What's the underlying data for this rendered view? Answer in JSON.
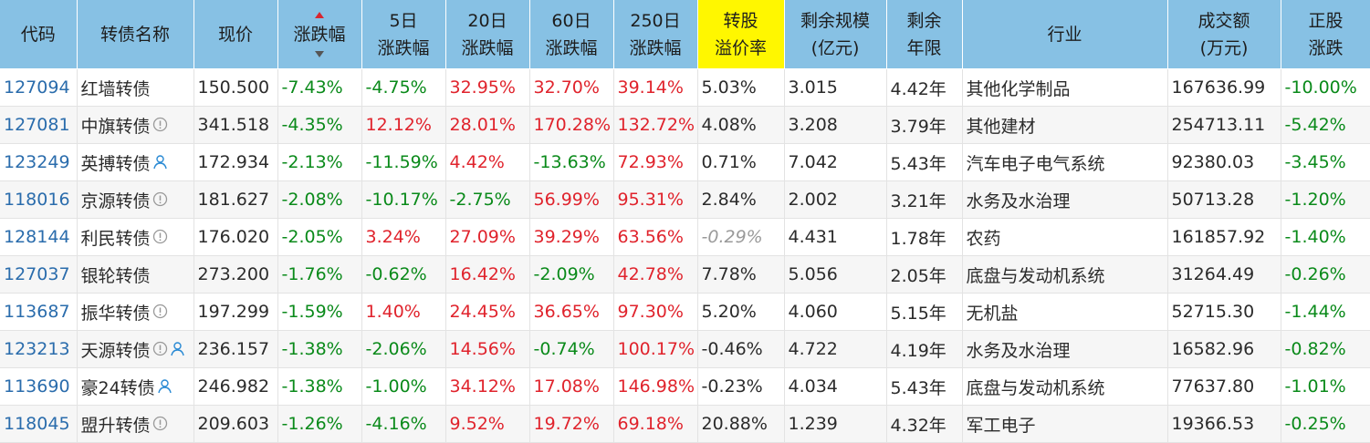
{
  "columns": {
    "code": "代码",
    "name": "转债名称",
    "price": "现价",
    "change": "涨跌幅",
    "d5_a": "5日",
    "d5_b": "涨跌幅",
    "d20_a": "20日",
    "d20_b": "涨跌幅",
    "d60_a": "60日",
    "d60_b": "涨跌幅",
    "d250_a": "250日",
    "d250_b": "涨跌幅",
    "prem_a": "转股",
    "prem_b": "溢价率",
    "scale_a": "剩余规模",
    "scale_b": "(亿元)",
    "years_a": "剩余",
    "years_b": "年限",
    "industry": "行业",
    "turnover_a": "成交额",
    "turnover_b": "(万元)",
    "stock_a": "正股",
    "stock_b": "涨跌"
  },
  "colors": {
    "header_bg": "#87c1e4",
    "highlight": "#fff700",
    "up": "#e0232c",
    "down": "#0a8a1a",
    "code": "#2a6cac"
  },
  "rows": [
    {
      "code": "127094",
      "name": "红墙转债",
      "icons": [],
      "price": "150.500",
      "change": "-7.43%",
      "d5": "-4.75%",
      "d20": "32.95%",
      "d60": "32.70%",
      "d250": "39.14%",
      "prem": "5.03%",
      "scale": "3.015",
      "years": "4.42年",
      "industry": "其他化学制品",
      "turnover": "167636.99",
      "stock": "-10.00%"
    },
    {
      "code": "127081",
      "name": "中旗转债",
      "icons": [
        "info-icon"
      ],
      "price": "341.518",
      "change": "-4.35%",
      "d5": "12.12%",
      "d20": "28.01%",
      "d60": "170.28%",
      "d250": "132.72%",
      "prem": "4.08%",
      "scale": "3.208",
      "years": "3.79年",
      "industry": "其他建材",
      "turnover": "254713.11",
      "stock": "-5.42%"
    },
    {
      "code": "123249",
      "name": "英搏转债",
      "icons": [
        "person-icon"
      ],
      "price": "172.934",
      "change": "-2.13%",
      "d5": "-11.59%",
      "d20": "4.42%",
      "d60": "-13.63%",
      "d250": "72.93%",
      "prem": "0.71%",
      "scale": "7.042",
      "years": "5.43年",
      "industry": "汽车电子电气系统",
      "turnover": "92380.03",
      "stock": "-3.45%"
    },
    {
      "code": "118016",
      "name": "京源转债",
      "icons": [
        "info-icon"
      ],
      "price": "181.627",
      "change": "-2.08%",
      "d5": "-10.17%",
      "d20": "-2.75%",
      "d60": "56.99%",
      "d250": "95.31%",
      "prem": "2.84%",
      "scale": "2.002",
      "years": "3.21年",
      "industry": "水务及水治理",
      "turnover": "50713.28",
      "stock": "-1.20%"
    },
    {
      "code": "128144",
      "name": "利民转债",
      "icons": [
        "info-icon"
      ],
      "price": "176.020",
      "change": "-2.05%",
      "d5": "3.24%",
      "d20": "27.09%",
      "d60": "39.29%",
      "d250": "63.56%",
      "prem": "-0.29%",
      "scale": "4.431",
      "years": "1.78年",
      "industry": "农药",
      "turnover": "161857.92",
      "stock": "-1.40%"
    },
    {
      "code": "127037",
      "name": "银轮转债",
      "icons": [],
      "price": "273.200",
      "change": "-1.76%",
      "d5": "-0.62%",
      "d20": "16.42%",
      "d60": "-2.09%",
      "d250": "42.78%",
      "prem": "7.78%",
      "scale": "5.056",
      "years": "2.05年",
      "industry": "底盘与发动机系统",
      "turnover": "31264.49",
      "stock": "-0.26%"
    },
    {
      "code": "113687",
      "name": "振华转债",
      "icons": [
        "info-icon"
      ],
      "price": "197.299",
      "change": "-1.59%",
      "d5": "1.40%",
      "d20": "24.45%",
      "d60": "36.65%",
      "d250": "97.30%",
      "prem": "5.20%",
      "scale": "4.060",
      "years": "5.15年",
      "industry": "无机盐",
      "turnover": "52715.30",
      "stock": "-1.44%"
    },
    {
      "code": "123213",
      "name": "天源转债",
      "icons": [
        "info-icon",
        "person-icon"
      ],
      "price": "236.157",
      "change": "-1.38%",
      "d5": "-2.06%",
      "d20": "14.56%",
      "d60": "-0.74%",
      "d250": "100.17%",
      "prem": "-0.46%",
      "scale": "4.722",
      "years": "4.19年",
      "industry": "水务及水治理",
      "turnover": "16582.96",
      "stock": "-0.82%"
    },
    {
      "code": "113690",
      "name": "豪24转债",
      "icons": [
        "person-icon"
      ],
      "price": "246.982",
      "change": "-1.38%",
      "d5": "-1.00%",
      "d20": "34.12%",
      "d60": "17.08%",
      "d250": "146.98%",
      "prem": "-0.23%",
      "scale": "4.034",
      "years": "5.43年",
      "industry": "底盘与发动机系统",
      "turnover": "77637.80",
      "stock": "-1.01%"
    },
    {
      "code": "118045",
      "name": "盟升转债",
      "icons": [
        "info-icon"
      ],
      "price": "209.603",
      "change": "-1.26%",
      "d5": "-4.16%",
      "d20": "9.52%",
      "d60": "19.72%",
      "d250": "69.18%",
      "prem": "20.88%",
      "scale": "1.239",
      "years": "4.32年",
      "industry": "军工电子",
      "turnover": "19366.53",
      "stock": "-0.25%"
    }
  ]
}
